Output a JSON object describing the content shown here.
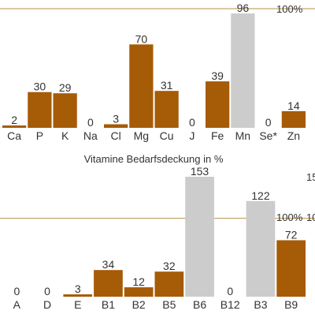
{
  "chart_data": [
    {
      "type": "bar",
      "title": "",
      "reference": {
        "value": 100,
        "label": "100%"
      },
      "ylim": [
        0,
        100
      ],
      "categories": [
        "Ca",
        "P",
        "K",
        "Na",
        "Cl",
        "Mg",
        "Cu",
        "J",
        "Fe",
        "Mn",
        "Se*",
        "Zn"
      ],
      "values": [
        2,
        30,
        29,
        0,
        3,
        70,
        31,
        0,
        39,
        96,
        0,
        14
      ],
      "capped": [
        false,
        false,
        false,
        false,
        false,
        false,
        false,
        false,
        false,
        true,
        false,
        false
      ]
    },
    {
      "type": "bar",
      "title": "Vitamine Bedarfsdeckung in %",
      "reference": {
        "value": 100,
        "label": "100%"
      },
      "ylim": [
        0,
        153
      ],
      "edge_labels": [
        "15",
        "10"
      ],
      "categories": [
        "A",
        "D",
        "E",
        "B1",
        "B2",
        "B5",
        "B6",
        "B12",
        "B3",
        "B9"
      ],
      "values": [
        0,
        0,
        3,
        34,
        12,
        32,
        153,
        0,
        122,
        72
      ],
      "capped": [
        false,
        false,
        false,
        false,
        false,
        false,
        true,
        false,
        true,
        false
      ]
    }
  ],
  "colors": {
    "bar": "#a65b06",
    "capped": "#cccccc",
    "reference_line": "#b8924e",
    "text": "#333333"
  }
}
